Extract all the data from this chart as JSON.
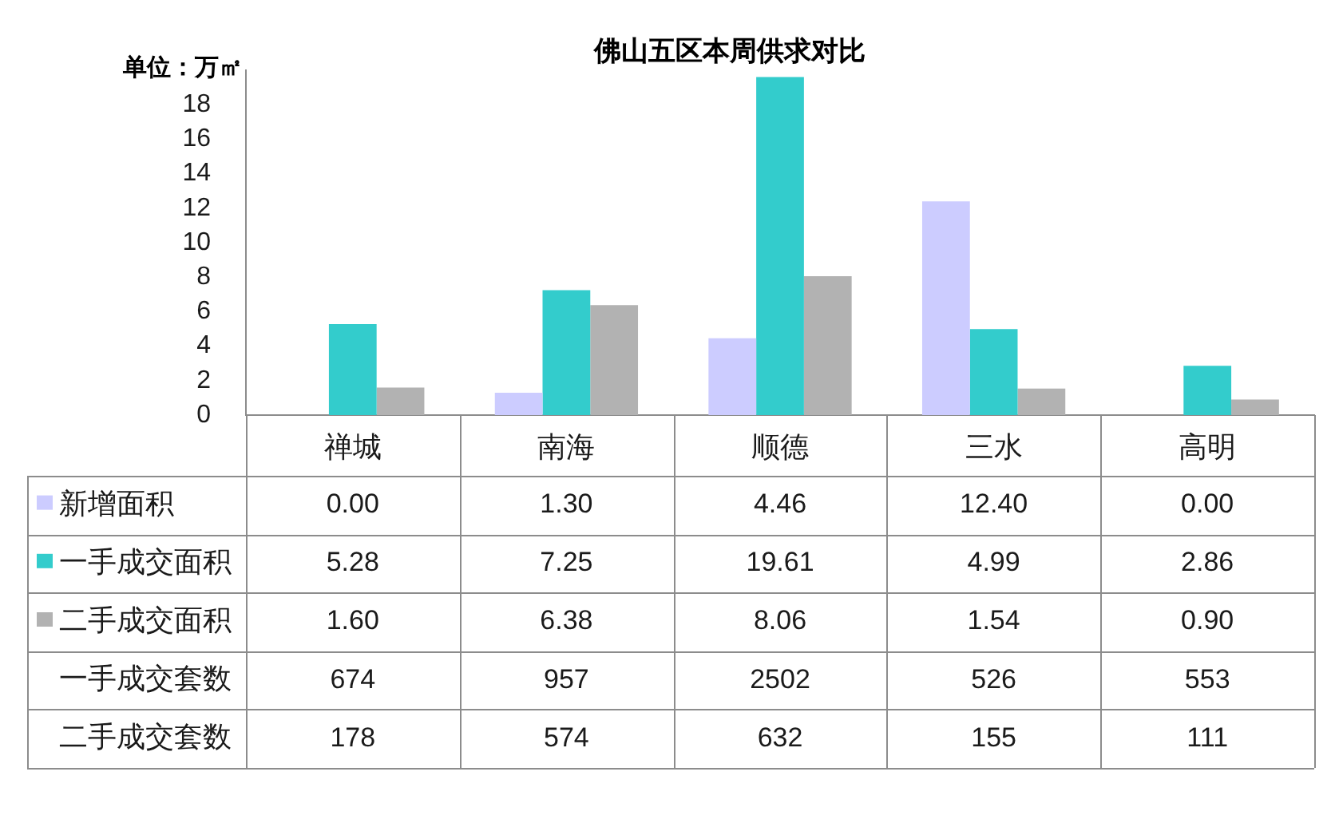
{
  "chart_data": {
    "type": "bar",
    "title": "佛山五区本周供求对比",
    "ylabel": "单位：万㎡",
    "categories": [
      "禅城",
      "南海",
      "顺德",
      "三水",
      "高明"
    ],
    "series": [
      {
        "name": "新增面积",
        "color": "#ccccff",
        "values": [
          0,
          1.3,
          4.46,
          12.4,
          0
        ],
        "value_labels": [
          "0.00",
          "1.30",
          "4.46",
          "12.40",
          "0.00"
        ]
      },
      {
        "name": "一手成交面积",
        "color": "#33cccc",
        "values": [
          5.28,
          7.25,
          19.61,
          4.99,
          2.86
        ],
        "value_labels": [
          "5.28",
          "7.25",
          "19.61",
          "4.99",
          "2.86"
        ]
      },
      {
        "name": "二手成交面积",
        "color": "#b2b2b2",
        "values": [
          1.6,
          6.38,
          8.06,
          1.54,
          0.9
        ],
        "value_labels": [
          "1.60",
          "6.38",
          "8.06",
          "1.54",
          "0.90"
        ]
      }
    ],
    "ylim": [
      0,
      20
    ],
    "yticks": [
      0,
      2,
      4,
      6,
      8,
      10,
      12,
      14,
      16,
      18
    ],
    "grid": false,
    "legend": "bottom left",
    "annotations": [
      "一手成交套数",
      "674",
      "957",
      "2502",
      "526",
      "553",
      "二手成交套数",
      "178",
      "574",
      "632",
      "155",
      "111"
    ]
  }
}
